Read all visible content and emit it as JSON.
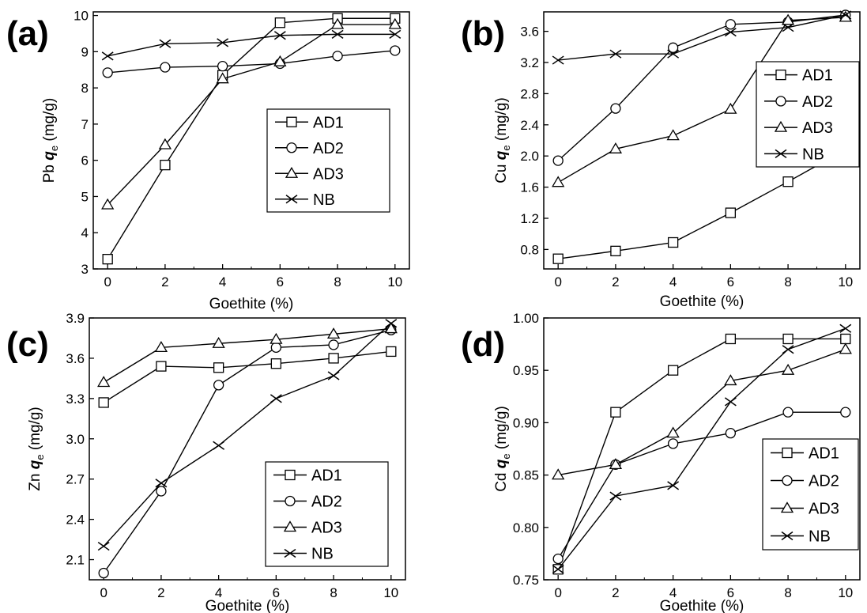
{
  "chart_data": [
    {
      "type": "line",
      "panel_label": "(a)",
      "x": [
        0,
        2,
        4,
        6,
        8,
        10
      ],
      "xlabel": "Goethite (%)",
      "ylabel": {
        "prefix": "Pb ",
        "q": "q",
        "sub": "e",
        "unit": " (mg/g)"
      },
      "xlim": [
        -0.5,
        10.5
      ],
      "ylim": [
        3,
        10.1
      ],
      "xticks": [
        "0",
        "2",
        "4",
        "6",
        "8",
        "10"
      ],
      "yticks": [
        3,
        4,
        5,
        6,
        7,
        8,
        9,
        10
      ],
      "ytick_labels": [
        "3",
        "4",
        "5",
        "6",
        "7",
        "8",
        "9",
        "10"
      ],
      "legend": {
        "position": "lower-right"
      },
      "series": [
        {
          "name": "AD1",
          "marker": "square",
          "values": [
            3.27,
            5.87,
            8.35,
            9.8,
            9.92,
            9.92
          ]
        },
        {
          "name": "AD2",
          "marker": "circle",
          "values": [
            8.42,
            8.57,
            8.6,
            8.67,
            8.88,
            9.03
          ]
        },
        {
          "name": "AD3",
          "marker": "triangle",
          "values": [
            4.77,
            6.43,
            8.25,
            8.72,
            9.75,
            9.75
          ]
        },
        {
          "name": "NB",
          "marker": "x",
          "values": [
            8.88,
            9.22,
            9.25,
            9.45,
            9.48,
            9.48
          ]
        }
      ]
    },
    {
      "type": "line",
      "panel_label": "(b)",
      "x": [
        0,
        2,
        4,
        6,
        8,
        10
      ],
      "xlabel": "Goethite (%)",
      "ylabel": {
        "prefix": "Cu ",
        "q": "q",
        "sub": "e",
        "unit": " (mg/g)"
      },
      "xlim": [
        -0.5,
        10.5
      ],
      "ylim": [
        0.55,
        3.85
      ],
      "xticks": [
        "0",
        "2",
        "4",
        "6",
        "8",
        "10"
      ],
      "yticks": [
        0.8,
        1.2,
        1.6,
        2.0,
        2.4,
        2.8,
        3.2,
        3.6
      ],
      "ytick_labels": [
        "0.8",
        "1.2",
        "1.6",
        "2.0",
        "2.4",
        "2.8",
        "3.2",
        "3.6"
      ],
      "legend": {
        "position": "right"
      },
      "series": [
        {
          "name": "AD1",
          "marker": "square",
          "values": [
            0.68,
            0.78,
            0.89,
            1.27,
            1.67,
            2.08
          ]
        },
        {
          "name": "AD2",
          "marker": "circle",
          "values": [
            1.94,
            2.61,
            3.39,
            3.69,
            3.72,
            3.81
          ]
        },
        {
          "name": "AD3",
          "marker": "triangle",
          "values": [
            1.66,
            2.09,
            2.26,
            2.6,
            3.74,
            3.78
          ]
        },
        {
          "name": "NB",
          "marker": "x",
          "values": [
            3.23,
            3.31,
            3.31,
            3.59,
            3.65,
            3.81
          ]
        }
      ]
    },
    {
      "type": "line",
      "panel_label": "(c)",
      "x": [
        0,
        2,
        4,
        6,
        8,
        10
      ],
      "xlabel": "Goethite (%)",
      "ylabel": {
        "prefix": "Zn ",
        "q": "q",
        "sub": "e",
        "unit": " (mg/g)"
      },
      "xlim": [
        -0.5,
        10.5
      ],
      "ylim": [
        1.95,
        3.9
      ],
      "xticks": [
        "0",
        "2",
        "4",
        "6",
        "8",
        "10"
      ],
      "yticks": [
        2.1,
        2.4,
        2.7,
        3.0,
        3.3,
        3.6,
        3.9
      ],
      "ytick_labels": [
        "2.1",
        "2.4",
        "2.7",
        "3.0",
        "3.3",
        "3.6",
        "3.9"
      ],
      "legend": {
        "position": "lower-right"
      },
      "series": [
        {
          "name": "AD1",
          "marker": "square",
          "values": [
            3.27,
            3.54,
            3.53,
            3.56,
            3.6,
            3.65
          ]
        },
        {
          "name": "AD2",
          "marker": "circle",
          "values": [
            2.0,
            2.61,
            3.4,
            3.68,
            3.7,
            3.81
          ]
        },
        {
          "name": "AD3",
          "marker": "triangle",
          "values": [
            3.42,
            3.68,
            3.71,
            3.74,
            3.78,
            3.82
          ]
        },
        {
          "name": "NB",
          "marker": "x",
          "values": [
            2.2,
            2.67,
            2.95,
            3.3,
            3.47,
            3.86
          ]
        }
      ]
    },
    {
      "type": "line",
      "panel_label": "(d)",
      "x": [
        0,
        2,
        4,
        6,
        8,
        10
      ],
      "xlabel": "Goethite (%)",
      "ylabel": {
        "prefix": "Cd ",
        "q": "q",
        "sub": "e",
        "unit": " (mg/g)"
      },
      "xlim": [
        -0.5,
        10.5
      ],
      "ylim": [
        0.75,
        1.0
      ],
      "xticks": [
        "0",
        "2",
        "4",
        "6",
        "8",
        "10"
      ],
      "yticks": [
        0.75,
        0.8,
        0.85,
        0.9,
        0.95,
        1.0
      ],
      "ytick_labels": [
        "0.75",
        "0.80",
        "0.85",
        "0.90",
        "0.95",
        "1.00"
      ],
      "legend": {
        "position": "lower-right"
      },
      "series": [
        {
          "name": "AD1",
          "marker": "square",
          "values": [
            0.76,
            0.91,
            0.95,
            0.98,
            0.98,
            0.98
          ]
        },
        {
          "name": "AD2",
          "marker": "circle",
          "values": [
            0.77,
            0.86,
            0.88,
            0.89,
            0.91,
            0.91
          ]
        },
        {
          "name": "AD3",
          "marker": "triangle",
          "values": [
            0.85,
            0.86,
            0.89,
            0.94,
            0.95,
            0.97
          ]
        },
        {
          "name": "NB",
          "marker": "x",
          "values": [
            0.76,
            0.83,
            0.84,
            0.92,
            0.97,
            0.99
          ]
        }
      ]
    }
  ]
}
